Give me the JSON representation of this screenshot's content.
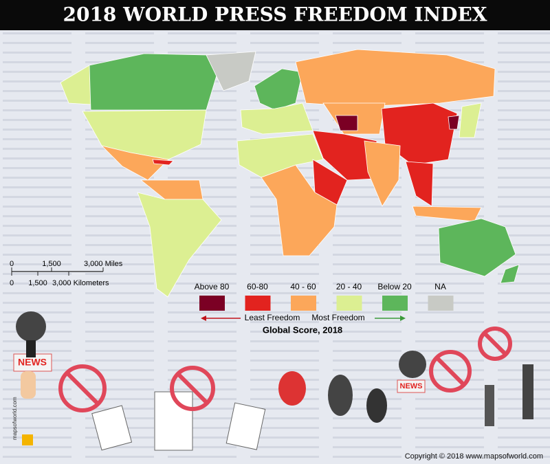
{
  "header": {
    "title": "2018 WORLD PRESS FREEDOM INDEX"
  },
  "scale_bar": {
    "miles": [
      "0",
      "1,500",
      "3,000 Miles"
    ],
    "kilometers": [
      "0",
      "1,500",
      "3,000 Kilometers"
    ]
  },
  "legend": {
    "items": [
      {
        "label": "Above 80",
        "color": "#7b0024"
      },
      {
        "label": "60-80",
        "color": "#e2231f"
      },
      {
        "label": "40 - 60",
        "color": "#fca75a"
      },
      {
        "label": "20 - 40",
        "color": "#dcef92"
      },
      {
        "label": "Below 20",
        "color": "#5db65b"
      },
      {
        "label": "NA",
        "color": "#c8cac5"
      }
    ],
    "least": "Least Freedom",
    "most": "Most Freedom",
    "caption": "Global Score, 2018"
  },
  "signs": [
    "NEWS",
    "NEWS"
  ],
  "logo": "mapsofworld.com",
  "footer": {
    "copyright": "Copyright © 2018 www.mapsofworld.com"
  }
}
